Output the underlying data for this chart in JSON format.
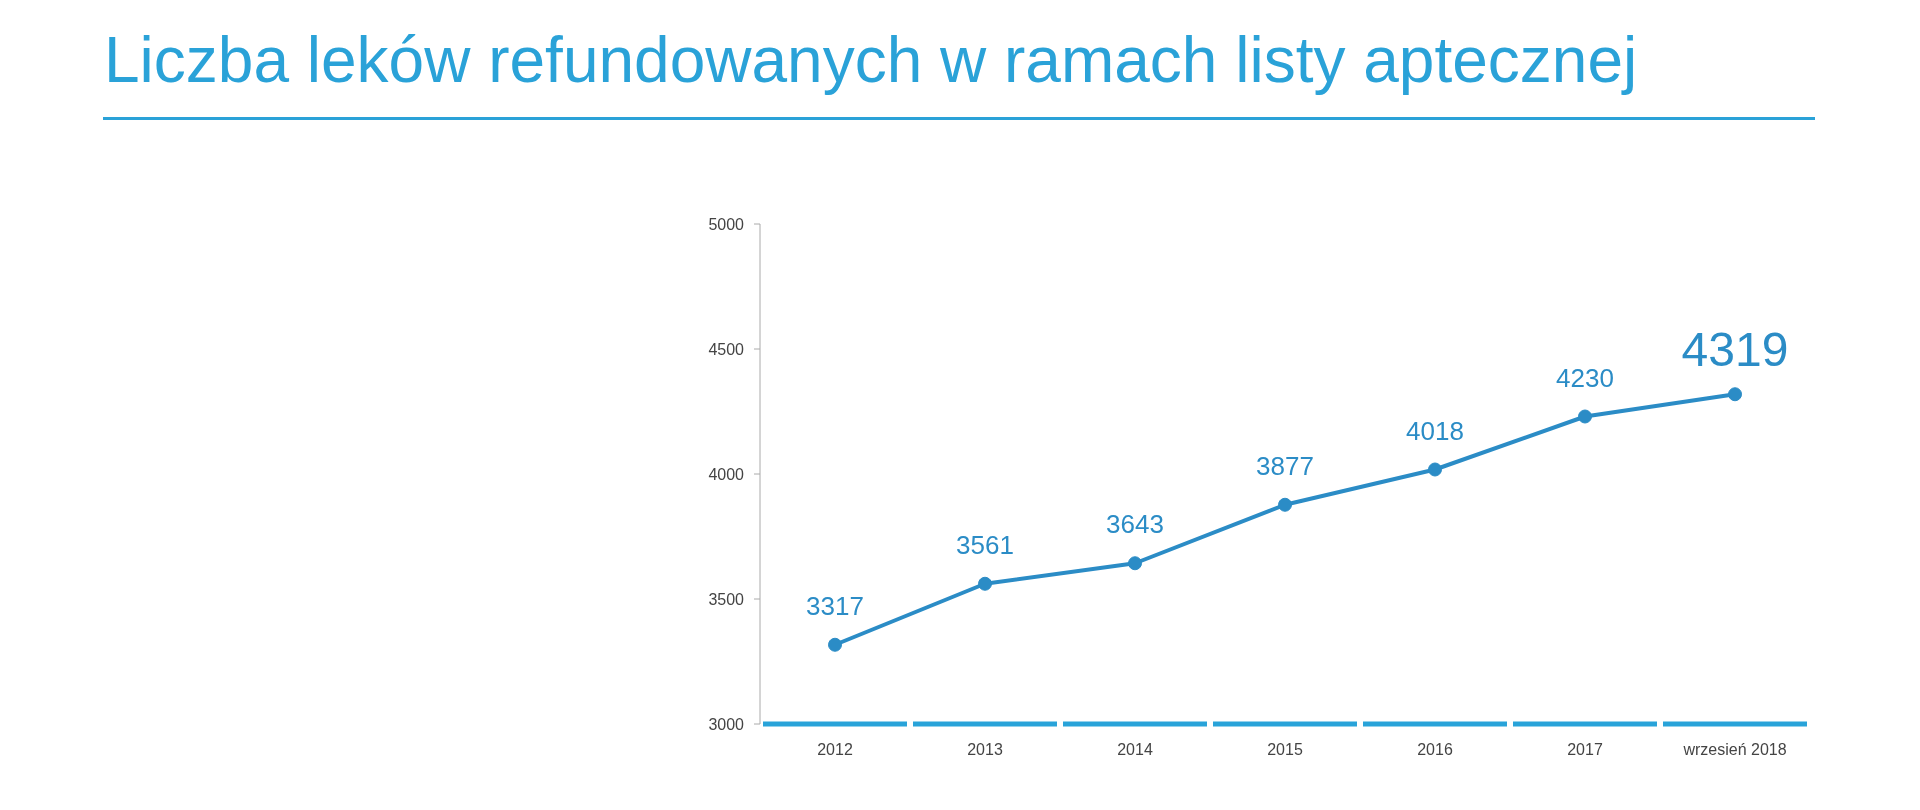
{
  "chart_data": {
    "type": "line",
    "title": "Liczba leków refundowanych w ramach listy aptecznej",
    "categories": [
      "2012",
      "2013",
      "2014",
      "2015",
      "2016",
      "2017",
      "wrzesień 2018"
    ],
    "series": [
      {
        "color": "#2b8cc6",
        "values": [
          3317,
          3561,
          3643,
          3877,
          4018,
          4230,
          4319
        ]
      }
    ],
    "ylim": [
      3000,
      5000
    ],
    "yticks": [
      3000,
      3500,
      4000,
      4500,
      5000
    ],
    "marker": "circle",
    "line_style": "solid",
    "data_labels": true
  }
}
